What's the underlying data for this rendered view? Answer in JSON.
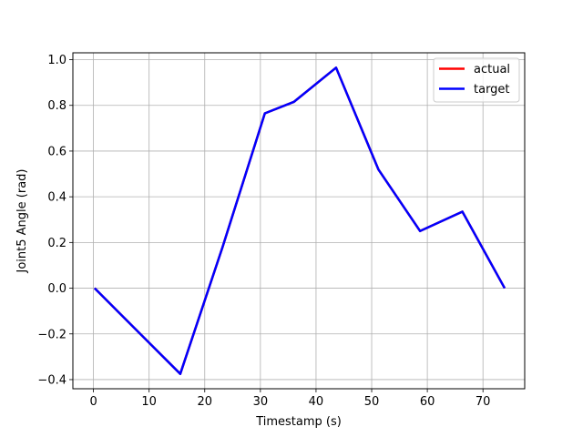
{
  "chart_data": {
    "type": "line",
    "title": "",
    "xlabel": "Timestamp (s)",
    "ylabel": "Joint5 Angle (rad)",
    "xlim": [
      -3.7,
      77.5
    ],
    "ylim": [
      -0.44,
      1.03
    ],
    "xticks": [
      0,
      10,
      20,
      30,
      40,
      50,
      60,
      70
    ],
    "yticks": [
      -0.4,
      -0.2,
      0.0,
      0.2,
      0.4,
      0.6,
      0.8,
      1.0
    ],
    "xtick_labels": [
      "0",
      "10",
      "20",
      "30",
      "40",
      "50",
      "60",
      "70"
    ],
    "ytick_labels": [
      "−0.4",
      "−0.2",
      "0.0",
      "0.2",
      "0.4",
      "0.6",
      "0.8",
      "1.0"
    ],
    "grid": true,
    "legend_position": "top-right",
    "series": [
      {
        "name": "actual",
        "color": "#ff0000",
        "x": [
          0.2,
          8,
          15.6,
          23.2,
          30.8,
          36,
          43.6,
          51.2,
          58.7,
          66.3,
          73.9
        ],
        "y": [
          0.0,
          -0.19,
          -0.375,
          0.18,
          0.765,
          0.815,
          0.965,
          0.52,
          0.25,
          0.335,
          0.0
        ]
      },
      {
        "name": "target",
        "color": "#0000ff",
        "x": [
          0.2,
          8,
          15.6,
          23.2,
          30.8,
          36,
          43.6,
          51.2,
          58.7,
          66.3,
          73.9
        ],
        "y": [
          0.0,
          -0.19,
          -0.375,
          0.18,
          0.765,
          0.815,
          0.965,
          0.52,
          0.25,
          0.335,
          0.0
        ]
      }
    ]
  }
}
